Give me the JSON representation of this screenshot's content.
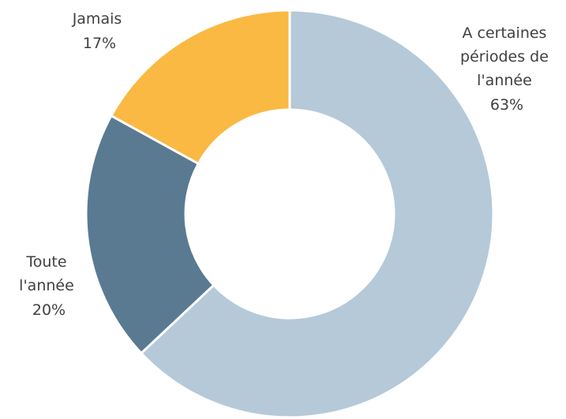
{
  "chart_data": {
    "type": "pie",
    "style": "donut",
    "title": "",
    "slices": [
      {
        "label": [
          "A certaines",
          "périodes de",
          "l'année"
        ],
        "pct_text": "63%",
        "value": 63,
        "color": "#b5c9d8"
      },
      {
        "label": [
          "Toute",
          "l'année"
        ],
        "pct_text": "20%",
        "value": 20,
        "color": "#5a7a92"
      },
      {
        "label": [
          "Jamais"
        ],
        "pct_text": "17%",
        "value": 17,
        "color": "#f9b942"
      }
    ],
    "legend": "none"
  }
}
